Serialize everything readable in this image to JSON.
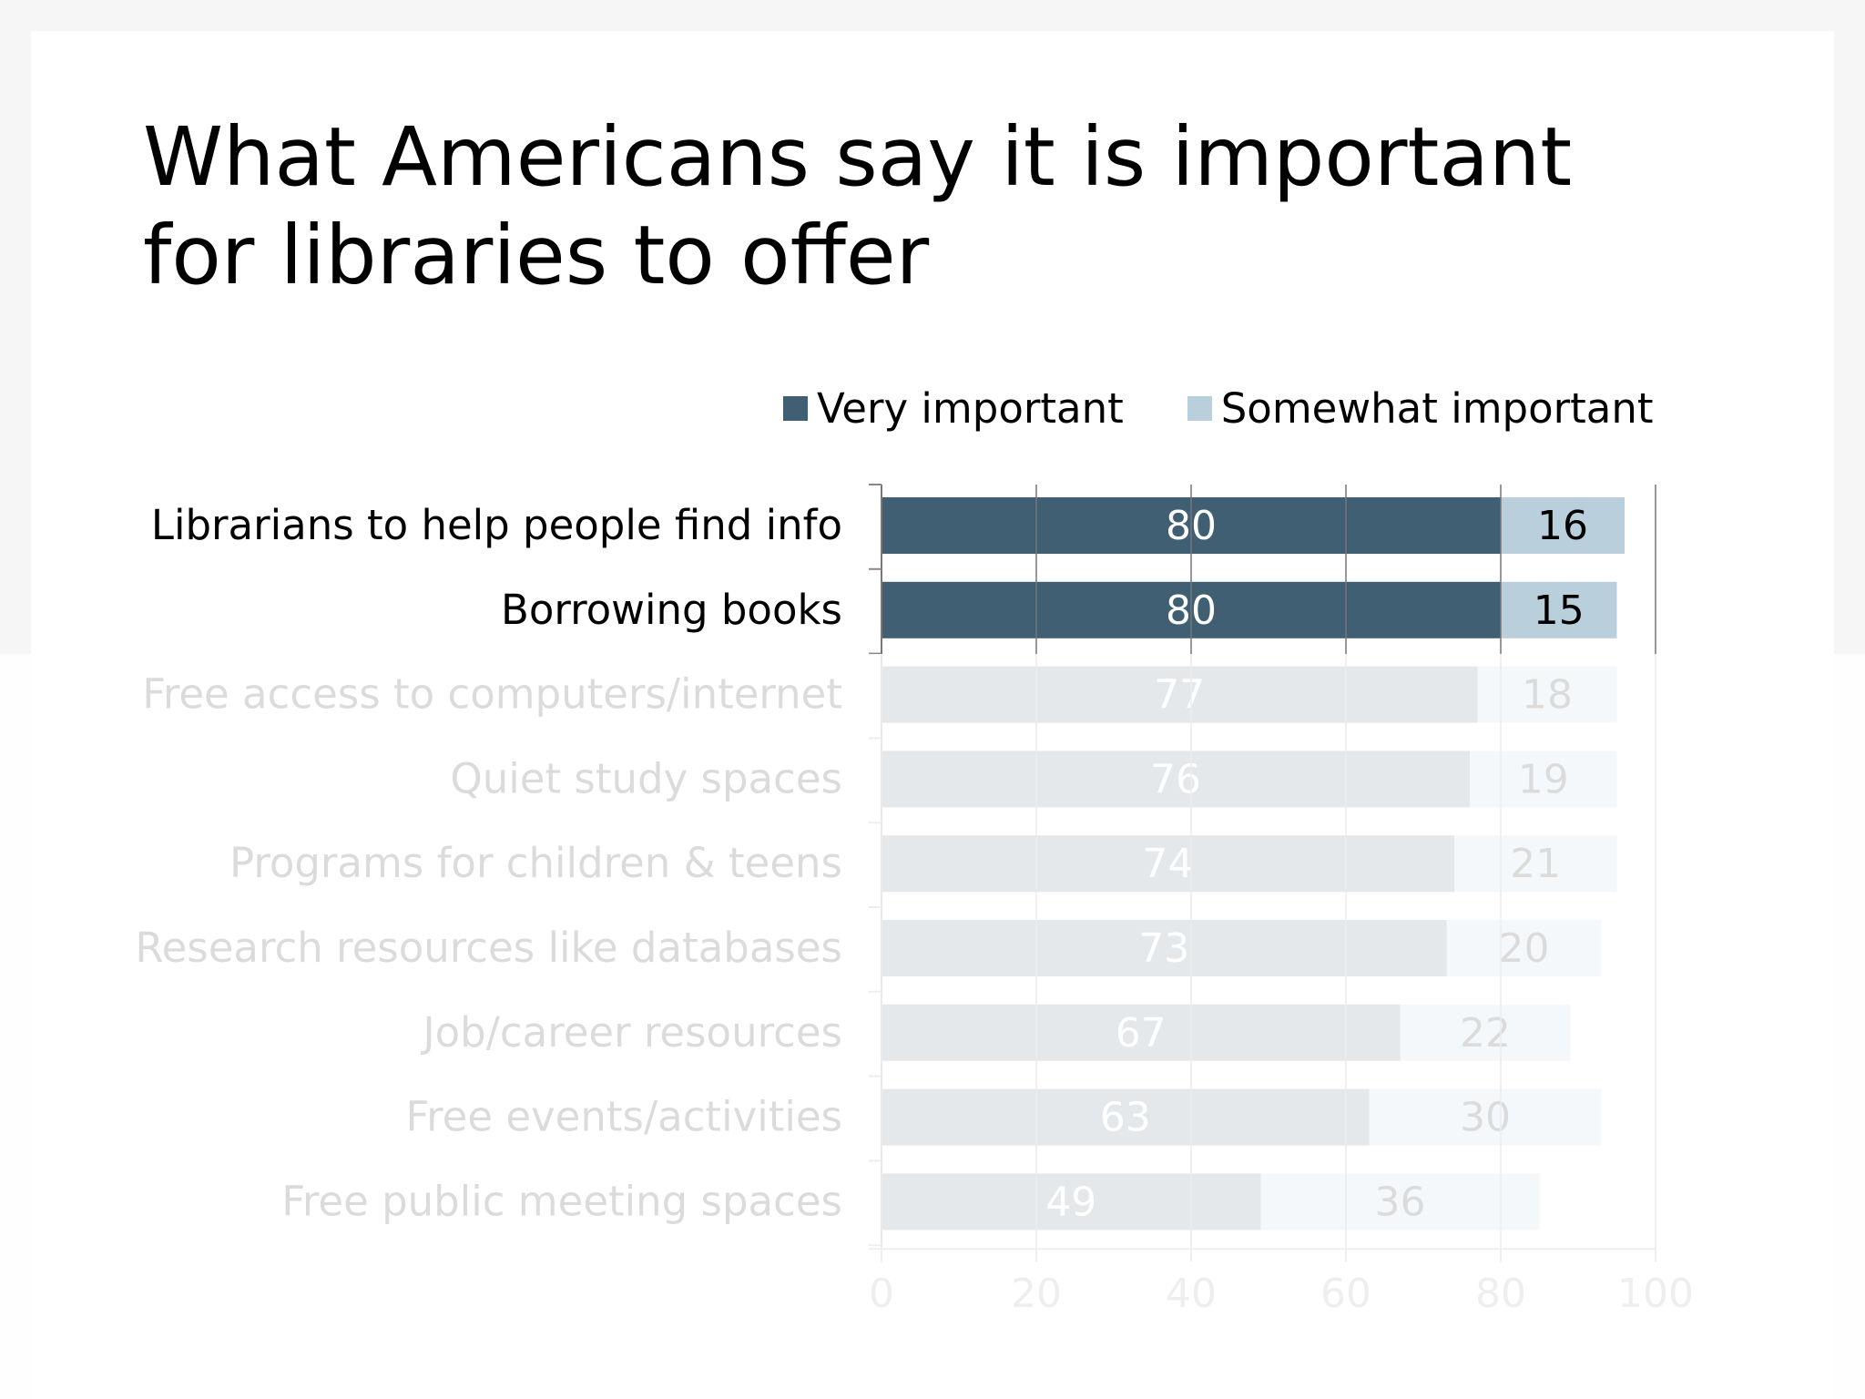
{
  "colors": {
    "very": "#405f72",
    "somewhat": "#b9cfdc",
    "text": "#000000",
    "axis": "#888888",
    "grid": "#777777"
  },
  "chart_data": {
    "type": "bar",
    "orientation": "horizontal",
    "stacked": true,
    "title_lines": [
      "What Americans say it is important",
      "for libraries to offer"
    ],
    "categories": [
      "Librarians to help people find info",
      "Borrowing books",
      "Free access to computers/internet",
      "Quiet study spaces",
      "Programs for children &  teens",
      "Research resources like databases",
      "Job/career resources",
      "Free events/activities",
      "Free public meeting spaces"
    ],
    "series": [
      {
        "name": "Very important",
        "color": "#405f72",
        "values": [
          80,
          80,
          77,
          76,
          74,
          73,
          67,
          63,
          49
        ]
      },
      {
        "name": "Somewhat important",
        "color": "#b9cfdc",
        "values": [
          16,
          15,
          18,
          19,
          21,
          20,
          22,
          30,
          36
        ]
      }
    ],
    "xlim": [
      0,
      100
    ],
    "xticks": [
      0,
      20,
      40,
      60,
      80,
      100
    ],
    "grid": true,
    "legend_position": "top"
  }
}
